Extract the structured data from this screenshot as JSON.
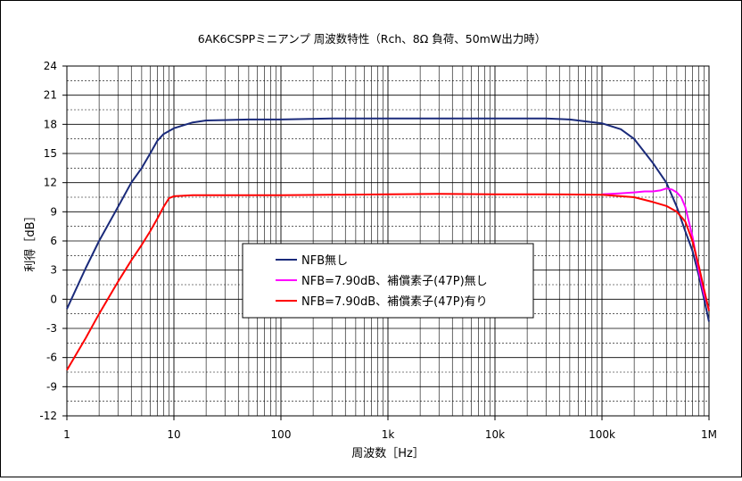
{
  "chart_data": {
    "type": "line",
    "title": "6AK6CSPPミニアンプ 周波数特性（Rch、8Ω 負荷、50mW出力時）",
    "xlabel": "周波数［Hz］",
    "ylabel": "利得［dB］",
    "x_scale": "log",
    "xlim": [
      1,
      1000000
    ],
    "ylim": [
      -12,
      24
    ],
    "grid": true,
    "legend_position": "center-left",
    "x_ticks": [
      {
        "value": 1,
        "label": "1"
      },
      {
        "value": 10,
        "label": "10"
      },
      {
        "value": 100,
        "label": "100"
      },
      {
        "value": 1000,
        "label": "1k"
      },
      {
        "value": 10000,
        "label": "10k"
      },
      {
        "value": 100000,
        "label": "100k"
      },
      {
        "value": 1000000,
        "label": "1M"
      }
    ],
    "y_ticks": [
      24,
      21,
      18,
      15,
      12,
      9,
      6,
      3,
      0,
      -3,
      -6,
      -9,
      -12
    ],
    "series": [
      {
        "name": "NFB無し",
        "color": "#1a2a7a",
        "points": [
          [
            1,
            -1
          ],
          [
            1.5,
            3.2
          ],
          [
            2,
            6
          ],
          [
            3,
            9.5
          ],
          [
            4,
            12
          ],
          [
            5,
            13.5
          ],
          [
            6,
            15
          ],
          [
            7,
            16.3
          ],
          [
            8,
            17
          ],
          [
            10,
            17.6
          ],
          [
            15,
            18.2
          ],
          [
            20,
            18.4
          ],
          [
            50,
            18.5
          ],
          [
            100,
            18.5
          ],
          [
            300,
            18.6
          ],
          [
            1000,
            18.6
          ],
          [
            5000,
            18.6
          ],
          [
            10000,
            18.6
          ],
          [
            30000,
            18.6
          ],
          [
            50000,
            18.5
          ],
          [
            100000,
            18.1
          ],
          [
            150000,
            17.5
          ],
          [
            200000,
            16.5
          ],
          [
            300000,
            14
          ],
          [
            400000,
            12
          ],
          [
            500000,
            9.5
          ],
          [
            600000,
            7
          ],
          [
            700000,
            5
          ],
          [
            800000,
            2.5
          ],
          [
            900000,
            0
          ],
          [
            1000000,
            -2.3
          ]
        ]
      },
      {
        "name": "NFB=7.90dB、補償素子(47P)無し",
        "color": "#ff00ff",
        "points": [
          [
            100000,
            10.8
          ],
          [
            150000,
            10.9
          ],
          [
            200000,
            11
          ],
          [
            250000,
            11.1
          ],
          [
            300000,
            11.1
          ],
          [
            350000,
            11.2
          ],
          [
            400000,
            11.4
          ],
          [
            450000,
            11.3
          ],
          [
            500000,
            11
          ],
          [
            550000,
            10.5
          ],
          [
            600000,
            9.5
          ],
          [
            700000,
            6.5
          ],
          [
            800000,
            3
          ],
          [
            900000,
            0.5
          ],
          [
            1000000,
            -1
          ]
        ]
      },
      {
        "name": "NFB=7.90dB、補償素子(47P)有り",
        "color": "#ff0000",
        "points": [
          [
            1,
            -7.3
          ],
          [
            1.5,
            -4
          ],
          [
            2,
            -1.5
          ],
          [
            3,
            1.8
          ],
          [
            4,
            4
          ],
          [
            5,
            5.6
          ],
          [
            6,
            7
          ],
          [
            7,
            8.3
          ],
          [
            8,
            9.5
          ],
          [
            9,
            10.4
          ],
          [
            10,
            10.6
          ],
          [
            15,
            10.7
          ],
          [
            50,
            10.7
          ],
          [
            100,
            10.7
          ],
          [
            1000,
            10.8
          ],
          [
            3000,
            10.85
          ],
          [
            10000,
            10.8
          ],
          [
            30000,
            10.8
          ],
          [
            100000,
            10.75
          ],
          [
            200000,
            10.5
          ],
          [
            300000,
            10
          ],
          [
            400000,
            9.6
          ],
          [
            500000,
            9
          ],
          [
            600000,
            8
          ],
          [
            700000,
            6
          ],
          [
            800000,
            3.5
          ],
          [
            900000,
            1
          ],
          [
            1000000,
            -1.2
          ]
        ]
      }
    ]
  }
}
